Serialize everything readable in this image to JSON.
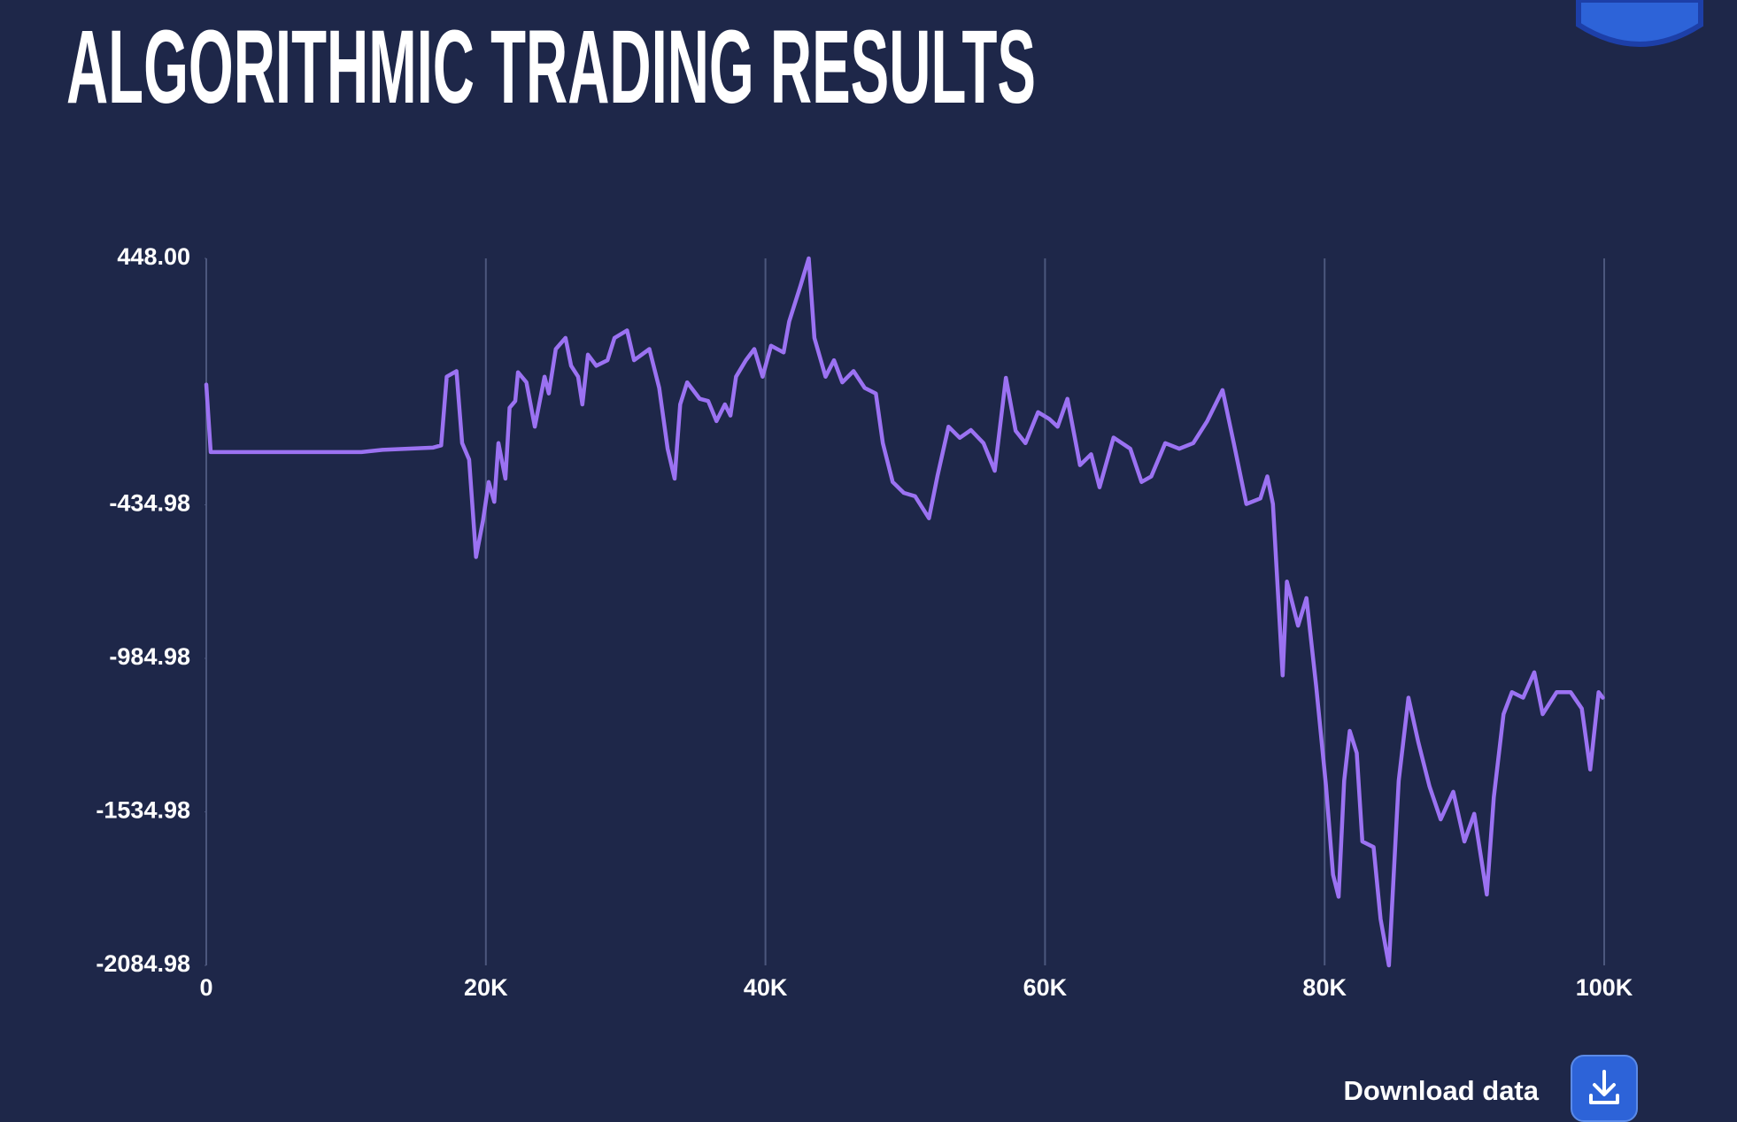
{
  "chart_data": {
    "type": "line",
    "title": "ALGORITHMIC TRADING RESULTS",
    "color": "#9b72f2",
    "grid": true,
    "xlim": [
      0,
      100000
    ],
    "xticks": [
      0,
      {
        "value": 20000,
        "label": "20K"
      },
      {
        "value": 40000,
        "label": "40K"
      },
      {
        "value": 60000,
        "label": "60K"
      },
      {
        "value": 80000,
        "label": "80K"
      },
      {
        "value": 100000,
        "label": "100K"
      }
    ],
    "ylim": [
      -2084.98,
      448
    ],
    "yticks": [
      {
        "value": 448,
        "label": "448.00"
      },
      -434.98,
      -984.98,
      -1534.98,
      -2084.98
    ],
    "x": [
      0,
      317,
      11100,
      12600,
      16200,
      16800,
      17200,
      17900,
      18300,
      18800,
      19300,
      19800,
      20200,
      20600,
      20900,
      21400,
      21700,
      22100,
      22300,
      22900,
      23500,
      24200,
      24500,
      25000,
      25700,
      26100,
      26600,
      26900,
      27300,
      27900,
      28700,
      29200,
      30100,
      30600,
      31700,
      32400,
      33000,
      33500,
      33900,
      34400,
      35300,
      35900,
      36500,
      37100,
      37500,
      37900,
      38600,
      39200,
      39800,
      40400,
      41300,
      41700,
      42500,
      43100,
      43500,
      44300,
      44900,
      45500,
      46300,
      47100,
      47900,
      48400,
      49100,
      49900,
      50700,
      51700,
      52300,
      53100,
      53900,
      54700,
      55600,
      56400,
      57200,
      57900,
      58600,
      59500,
      60300,
      60900,
      61600,
      62500,
      63300,
      63900,
      64900,
      66100,
      66900,
      67600,
      68600,
      69600,
      70600,
      71600,
      72700,
      73500,
      74400,
      75400,
      75900,
      76300,
      77000,
      77300,
      78100,
      78700,
      79400,
      80100,
      80600,
      81000,
      81400,
      81800,
      82300,
      82700,
      83500,
      84000,
      84600,
      85300,
      86000,
      86700,
      87500,
      88300,
      89200,
      90000,
      90700,
      91600,
      92100,
      92800,
      93400,
      94200,
      95000,
      95600,
      96600,
      97600,
      98400,
      99000,
      99600,
      99900
    ],
    "values": [
      -4,
      -246,
      -246,
      -238,
      -230,
      -222,
      24,
      44,
      -214,
      -273,
      -622,
      -491,
      -353,
      -424,
      -214,
      -341,
      -87,
      -63,
      40,
      4,
      -155,
      24,
      -36,
      123,
      163,
      63,
      24,
      -75,
      103,
      63,
      83,
      163,
      190,
      83,
      123,
      -16,
      -234,
      -341,
      -75,
      4,
      -55,
      -63,
      -135,
      -75,
      -115,
      24,
      83,
      123,
      24,
      135,
      111,
      222,
      349,
      448,
      163,
      24,
      83,
      4,
      44,
      -16,
      -36,
      -214,
      -353,
      -392,
      -404,
      -483,
      -333,
      -155,
      -195,
      -167,
      -214,
      -313,
      20,
      -170,
      -214,
      -103,
      -127,
      -155,
      -55,
      -293,
      -254,
      -372,
      -194,
      -234,
      -353,
      -333,
      -214,
      -234,
      -214,
      -135,
      -24,
      -214,
      -432,
      -412,
      -333,
      -432,
      -1046,
      -710,
      -868,
      -769,
      -1086,
      -1443,
      -1760,
      -1839,
      -1423,
      -1245,
      -1324,
      -1641,
      -1661,
      -1919,
      -2084.98,
      -1423,
      -1126,
      -1285,
      -1443,
      -1562,
      -1463,
      -1641,
      -1542,
      -1831,
      -1483,
      -1185,
      -1106,
      -1126,
      -1035,
      -1185,
      -1106,
      -1106,
      -1165,
      -1383,
      -1106,
      -1126
    ]
  },
  "download": {
    "label": "Download data"
  }
}
